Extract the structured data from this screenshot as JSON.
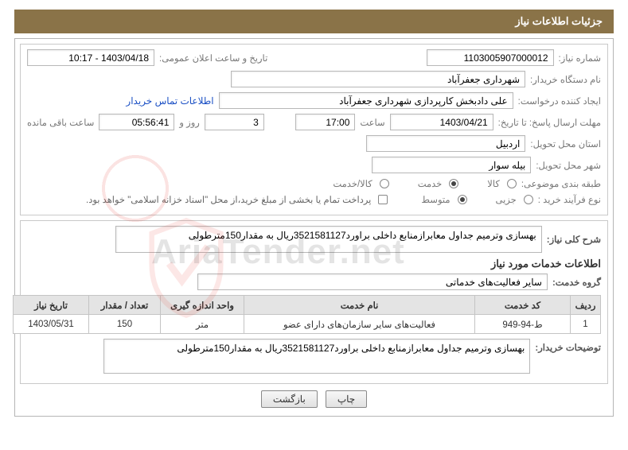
{
  "header": {
    "title": "جزئیات اطلاعات نیاز"
  },
  "info": {
    "need_no_label": "شماره نیاز:",
    "need_no": "1103005907000012",
    "announce_label": "تاریخ و ساعت اعلان عمومی:",
    "announce": "1403/04/18 - 10:17",
    "buyer_org_label": "نام دستگاه خریدار:",
    "buyer_org": "شهرداری جعفرآباد",
    "requester_label": "ایجاد کننده درخواست:",
    "requester": "علی دادبخش کارپردازی شهرداری جعفرآباد",
    "contact_link": "اطلاعات تماس خریدار",
    "deadline_label": "مهلت ارسال پاسخ: تا تاریخ:",
    "deadline_date": "1403/04/21",
    "time_label": "ساعت",
    "deadline_time": "17:00",
    "remain_days": "3",
    "days_and": "روز و",
    "remain_time": "05:56:41",
    "remain_label": "ساعت باقی مانده",
    "province_label": "استان محل تحویل:",
    "province": "اردبیل",
    "city_label": "شهر محل تحویل:",
    "city": "بیله سوار",
    "class_label": "طبقه بندی موضوعی:",
    "opt_goods": "کالا",
    "opt_service": "خدمت",
    "opt_goods_service": "کالا/خدمت",
    "process_label": "نوع فرآیند خرید :",
    "opt_minor": "جزیی",
    "opt_medium": "متوسط",
    "payment_note": "پرداخت تمام یا بخشی از مبلغ خرید،از محل \"اسناد خزانه اسلامی\" خواهد بود."
  },
  "desc": {
    "title_label": "شرح کلی نیاز:",
    "text": "بهسازی وترمیم جداول معابرازمنابع داخلی براورد3521581127ریال به مقدار150مترطولی",
    "services_header": "اطلاعات خدمات مورد نیاز",
    "service_group_label": "گروه خدمت:",
    "service_group": "سایر فعالیت‌های خدماتی"
  },
  "table": {
    "cols": {
      "row": "ردیف",
      "code": "کد خدمت",
      "name": "نام خدمت",
      "unit": "واحد اندازه گیری",
      "qty": "تعداد / مقدار",
      "need_date": "تاریخ نیاز"
    },
    "rows": [
      {
        "row": "1",
        "code": "ط-94-949",
        "name": "فعالیت‌های سایر سازمان‌های دارای عضو",
        "unit": "متر",
        "qty": "150",
        "need_date": "1403/05/31"
      }
    ]
  },
  "buyer_notes": {
    "label": "توضیحات خریدار:",
    "text": "بهسازی وترمیم جداول معابرازمنابع داخلی براورد3521581127ریال به مقدار150مترطولی"
  },
  "buttons": {
    "print": "چاپ",
    "back": "بازگشت"
  },
  "widths": {
    "need_no": 160,
    "announce": 160,
    "buyer_org": 370,
    "requester": 370,
    "deadline_date": 130,
    "deadline_time": 75,
    "remain_days": 75,
    "remain_time": 95,
    "province": 200,
    "city": 200,
    "service_group": 440
  },
  "col_widths": {
    "row": 38,
    "code": 120,
    "name": 290,
    "unit": 105,
    "qty": 90,
    "need_date": 95
  }
}
